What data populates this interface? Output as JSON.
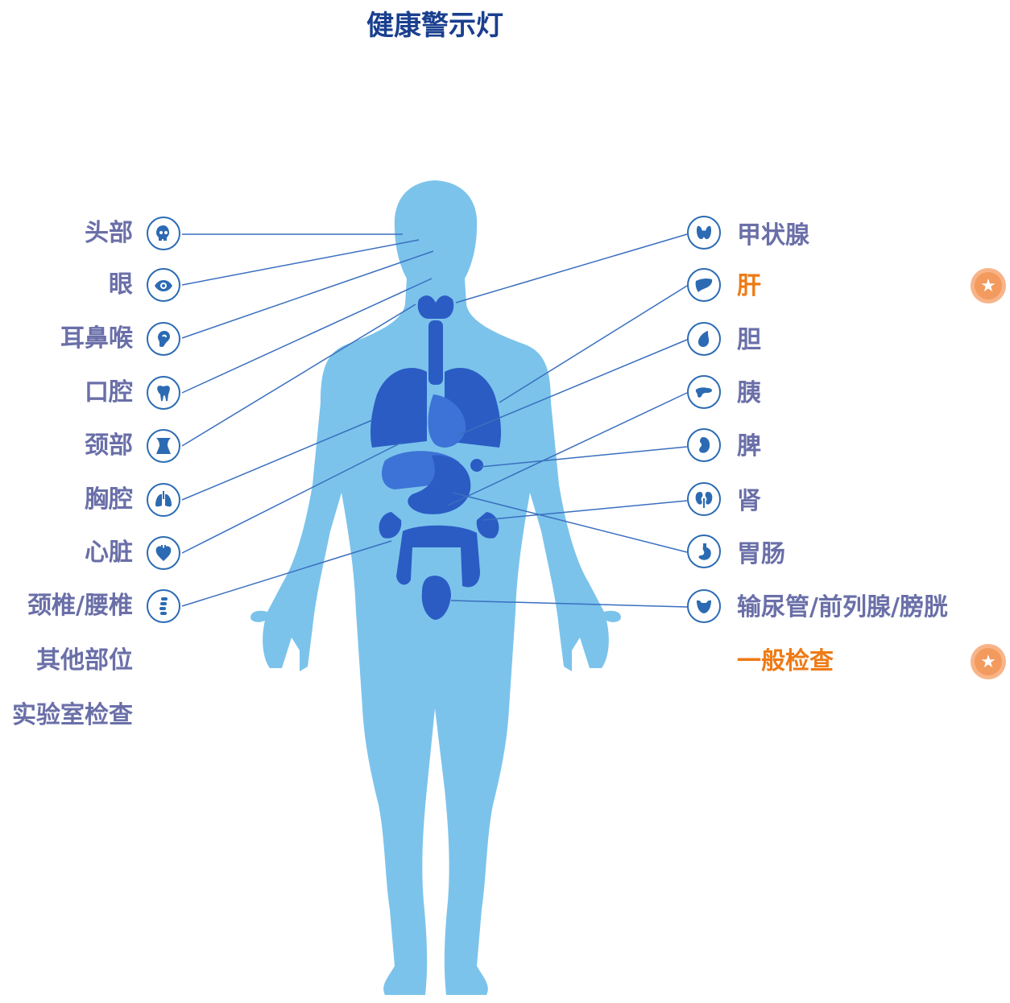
{
  "title": "健康警示灯",
  "colors": {
    "accent": "#ee7a14",
    "label": "#6a6fa8",
    "body": "#7bc3eb",
    "organ": "#2b5cc4",
    "line": "#3a6fbf"
  },
  "left": [
    {
      "label": "头部",
      "icon": "skull-icon"
    },
    {
      "label": "眼",
      "icon": "eye-icon"
    },
    {
      "label": "耳鼻喉",
      "icon": "ear-icon"
    },
    {
      "label": "口腔",
      "icon": "tooth-icon"
    },
    {
      "label": "颈部",
      "icon": "neck-icon"
    },
    {
      "label": "胸腔",
      "icon": "lungs-icon"
    },
    {
      "label": "心脏",
      "icon": "heart-icon"
    },
    {
      "label": "颈椎/腰椎",
      "icon": "spine-icon"
    },
    {
      "label": "其他部位",
      "icon": ""
    },
    {
      "label": "实验室检查",
      "icon": ""
    }
  ],
  "right": [
    {
      "label": "甲状腺",
      "icon": "thyroid-icon",
      "highlight": false
    },
    {
      "label": "肝",
      "icon": "liver-icon",
      "highlight": true
    },
    {
      "label": "胆",
      "icon": "gallbladder-icon",
      "highlight": false
    },
    {
      "label": "胰",
      "icon": "pancreas-icon",
      "highlight": false
    },
    {
      "label": "脾",
      "icon": "spleen-icon",
      "highlight": false
    },
    {
      "label": "肾",
      "icon": "kidney-icon",
      "highlight": false
    },
    {
      "label": "胃肠",
      "icon": "stomach-icon",
      "highlight": false
    },
    {
      "label": "输尿管/前列腺/膀胱",
      "icon": "bladder-icon",
      "highlight": false
    },
    {
      "label": "一般检查",
      "icon": "",
      "highlight": true
    }
  ]
}
